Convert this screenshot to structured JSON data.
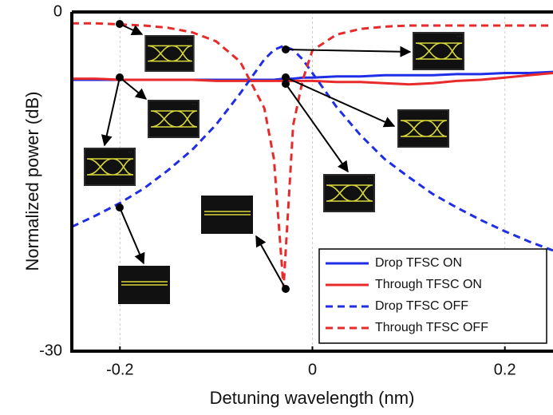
{
  "chart_data": {
    "type": "line",
    "x_label": "Detuning wavelength (nm)",
    "y_label": "Normalized power (dB)",
    "x": [
      -0.25,
      -0.225,
      -0.2,
      -0.175,
      -0.15,
      -0.125,
      -0.1,
      -0.075,
      -0.05,
      -0.04,
      -0.03,
      -0.02,
      -0.01,
      0,
      0.025,
      0.05,
      0.075,
      0.1,
      0.125,
      0.15,
      0.175,
      0.2,
      0.225,
      0.25
    ],
    "series": [
      {
        "name": "Drop TFSC ON",
        "color": "#1f2ee6",
        "dashed": false,
        "values": [
          -6.0,
          -6.0,
          -6.0,
          -6.0,
          -6.0,
          -6.0,
          -6.0,
          -6.0,
          -6.0,
          -6.0,
          -5.9,
          -5.9,
          -5.8,
          -5.8,
          -5.7,
          -5.7,
          -5.6,
          -5.6,
          -5.6,
          -5.5,
          -5.5,
          -5.4,
          -5.4,
          -5.3
        ]
      },
      {
        "name": "Through TFSC ON",
        "color": "#e82a2a",
        "dashed": false,
        "values": [
          -5.9,
          -5.9,
          -6.0,
          -6.0,
          -6.0,
          -6.0,
          -6.1,
          -6.1,
          -6.1,
          -6.1,
          -6.1,
          -6.1,
          -6.1,
          -6.1,
          -6.2,
          -6.2,
          -6.3,
          -6.4,
          -6.3,
          -6.1,
          -6.0,
          -5.8,
          -5.6,
          -5.4
        ]
      },
      {
        "name": "Drop TFSC OFF",
        "color": "#1f2ee6",
        "dashed": true,
        "values": [
          -19.0,
          -18.0,
          -16.9,
          -15.6,
          -14.0,
          -12.2,
          -9.95,
          -7.2,
          -4.2,
          -3.35,
          -3.0,
          -3.35,
          -4.2,
          -5.4,
          -8.4,
          -10.9,
          -13.0,
          -14.6,
          -16.1,
          -17.3,
          -18.4,
          -19.4,
          -20.3,
          -21.1
        ]
      },
      {
        "name": "Through TFSC OFF",
        "color": "#e82a2a",
        "dashed": true,
        "values": [
          -1.0,
          -1.0,
          -1.1,
          -1.2,
          -1.4,
          -1.8,
          -2.6,
          -4.4,
          -8.5,
          -13.0,
          -24.4,
          -10.0,
          -6.0,
          -3.4,
          -2.0,
          -1.5,
          -1.3,
          -1.2,
          -1.2,
          -1.2,
          -1.2,
          -1.2,
          -1.2,
          -1.2
        ]
      }
    ],
    "xlim": [
      -0.25,
      0.25
    ],
    "xticks": [
      -0.2,
      0,
      0.2
    ],
    "ylim": [
      -30,
      0
    ],
    "yticks": [
      -30,
      0
    ],
    "grid": true,
    "legend": "lower right"
  }
}
